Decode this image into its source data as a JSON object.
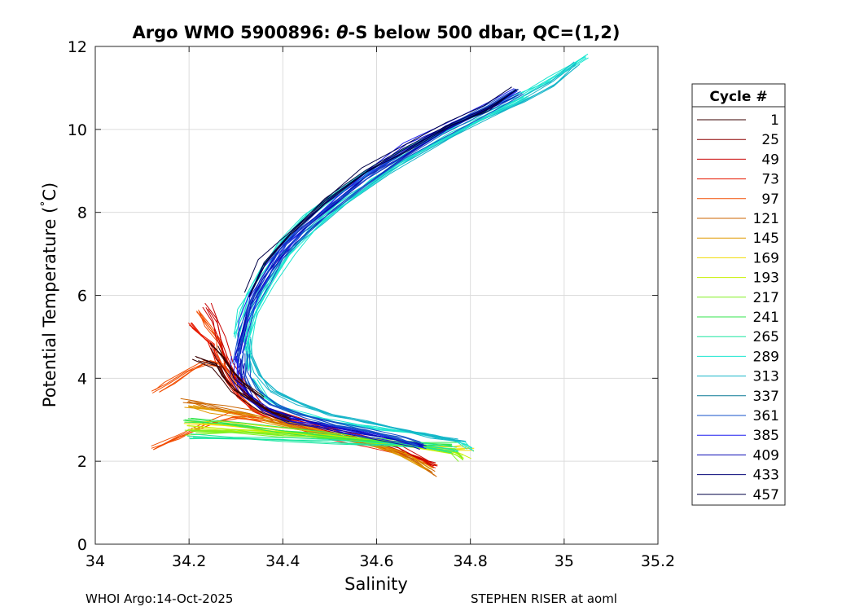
{
  "chart_data": {
    "type": "line",
    "title_prefix": "Argo WMO 5900896: ",
    "title_theta": "θ",
    "title_suffix": "-S below 500 dbar,  QC=(1,2)",
    "xlabel": "Salinity",
    "ylabel_main": "Potential Temperature (",
    "ylabel_unit": "C)",
    "xlim": [
      34,
      35.2
    ],
    "ylim": [
      0,
      12
    ],
    "xticks": [
      "34",
      "34.2",
      "34.4",
      "34.6",
      "34.8",
      "35",
      "35.2"
    ],
    "yticks": [
      "0",
      "2",
      "4",
      "6",
      "8",
      "10",
      "12"
    ],
    "grid": true,
    "legend": {
      "title": "Cycle #",
      "placement": "outside-right",
      "entries": [
        {
          "label": "1",
          "color": "#3a0000"
        },
        {
          "label": "25",
          "color": "#8c0000"
        },
        {
          "label": "49",
          "color": "#c80000"
        },
        {
          "label": "73",
          "color": "#e61a00"
        },
        {
          "label": "97",
          "color": "#f24d00"
        },
        {
          "label": "121",
          "color": "#cc6600"
        },
        {
          "label": "145",
          "color": "#e09900"
        },
        {
          "label": "169",
          "color": "#f0dc00"
        },
        {
          "label": "193",
          "color": "#c8f000"
        },
        {
          "label": "217",
          "color": "#80f020"
        },
        {
          "label": "241",
          "color": "#33e64d"
        },
        {
          "label": "265",
          "color": "#1ae6a0"
        },
        {
          "label": "289",
          "color": "#1ae6d0"
        },
        {
          "label": "313",
          "color": "#14b4c8"
        },
        {
          "label": "337",
          "color": "#0a7896"
        },
        {
          "label": "361",
          "color": "#1450c8"
        },
        {
          "label": "385",
          "color": "#1e1ef0"
        },
        {
          "label": "409",
          "color": "#0a0ab4"
        },
        {
          "label": "433",
          "color": "#050578"
        },
        {
          "label": "457",
          "color": "#000046"
        }
      ]
    },
    "series": [
      {
        "color": "#e61a00",
        "points": [
          [
            34.205,
            5.3
          ],
          [
            34.23,
            5.0
          ],
          [
            34.25,
            4.8
          ],
          [
            34.26,
            4.5
          ],
          [
            34.27,
            4.2
          ],
          [
            34.29,
            3.8
          ],
          [
            34.31,
            3.5
          ],
          [
            34.34,
            3.2
          ],
          [
            34.38,
            3.0
          ],
          [
            34.43,
            2.8
          ],
          [
            34.5,
            2.6
          ],
          [
            34.58,
            2.4
          ],
          [
            34.65,
            2.2
          ],
          [
            34.7,
            2.0
          ],
          [
            34.72,
            1.85
          ]
        ]
      },
      {
        "color": "#f24d00",
        "points": [
          [
            34.22,
            5.6
          ],
          [
            34.24,
            5.2
          ],
          [
            34.26,
            4.9
          ],
          [
            34.27,
            4.6
          ],
          [
            34.28,
            4.3
          ],
          [
            34.3,
            3.9
          ],
          [
            34.32,
            3.55
          ],
          [
            34.35,
            3.25
          ],
          [
            34.4,
            3.0
          ],
          [
            34.46,
            2.8
          ],
          [
            34.53,
            2.6
          ],
          [
            34.61,
            2.35
          ],
          [
            34.68,
            2.1
          ],
          [
            34.72,
            1.9
          ]
        ]
      },
      {
        "color": "#c80000",
        "points": [
          [
            34.24,
            5.75
          ],
          [
            34.26,
            5.4
          ],
          [
            34.27,
            5.0
          ],
          [
            34.28,
            4.6
          ],
          [
            34.29,
            4.3
          ],
          [
            34.31,
            3.95
          ],
          [
            34.33,
            3.6
          ],
          [
            34.36,
            3.3
          ],
          [
            34.42,
            3.05
          ],
          [
            34.48,
            2.85
          ],
          [
            34.56,
            2.6
          ],
          [
            34.64,
            2.35
          ],
          [
            34.7,
            2.05
          ],
          [
            34.725,
            1.9
          ]
        ]
      },
      {
        "color": "#cc6600",
        "points": [
          [
            34.19,
            3.5
          ],
          [
            34.22,
            3.4
          ],
          [
            34.27,
            3.3
          ],
          [
            34.32,
            3.2
          ],
          [
            34.38,
            3.0
          ],
          [
            34.45,
            2.8
          ],
          [
            34.52,
            2.6
          ],
          [
            34.6,
            2.4
          ],
          [
            34.67,
            2.1
          ],
          [
            34.72,
            1.7
          ]
        ]
      },
      {
        "color": "#e09900",
        "points": [
          [
            34.2,
            3.3
          ],
          [
            34.25,
            3.2
          ],
          [
            34.31,
            3.1
          ],
          [
            34.37,
            2.95
          ],
          [
            34.44,
            2.8
          ],
          [
            34.51,
            2.6
          ],
          [
            34.59,
            2.4
          ],
          [
            34.66,
            2.15
          ],
          [
            34.71,
            1.8
          ]
        ]
      },
      {
        "color": "#f24d00",
        "points": [
          [
            34.13,
            3.7
          ],
          [
            34.16,
            3.9
          ],
          [
            34.2,
            4.2
          ],
          [
            34.24,
            4.4
          ],
          [
            34.27,
            4.3
          ]
        ]
      },
      {
        "color": "#f24d00",
        "points": [
          [
            34.125,
            2.3
          ],
          [
            34.18,
            2.6
          ],
          [
            34.24,
            2.9
          ],
          [
            34.3,
            3.1
          ],
          [
            34.36,
            3.0
          ]
        ]
      },
      {
        "color": "#f0dc00",
        "points": [
          [
            34.2,
            2.95
          ],
          [
            34.28,
            2.9
          ],
          [
            34.36,
            2.8
          ],
          [
            34.44,
            2.7
          ],
          [
            34.52,
            2.6
          ],
          [
            34.6,
            2.5
          ],
          [
            34.68,
            2.4
          ],
          [
            34.76,
            2.35
          ],
          [
            34.8,
            2.35
          ]
        ]
      },
      {
        "color": "#c8f000",
        "points": [
          [
            34.2,
            2.8
          ],
          [
            34.3,
            2.75
          ],
          [
            34.4,
            2.7
          ],
          [
            34.5,
            2.6
          ],
          [
            34.6,
            2.5
          ],
          [
            34.7,
            2.35
          ],
          [
            34.77,
            2.2
          ],
          [
            34.79,
            2.1
          ]
        ]
      },
      {
        "color": "#80f020",
        "points": [
          [
            34.2,
            2.7
          ],
          [
            34.3,
            2.7
          ],
          [
            34.4,
            2.62
          ],
          [
            34.5,
            2.55
          ],
          [
            34.6,
            2.45
          ],
          [
            34.7,
            2.35
          ],
          [
            34.76,
            2.25
          ],
          [
            34.78,
            2.05
          ]
        ]
      },
      {
        "color": "#33e64d",
        "points": [
          [
            34.2,
            3.0
          ],
          [
            34.3,
            2.9
          ],
          [
            34.4,
            2.75
          ],
          [
            34.5,
            2.62
          ],
          [
            34.6,
            2.52
          ],
          [
            34.7,
            2.45
          ],
          [
            34.77,
            2.4
          ]
        ]
      },
      {
        "color": "#1ae6a0",
        "points": [
          [
            34.2,
            2.6
          ],
          [
            34.3,
            2.58
          ],
          [
            34.4,
            2.55
          ],
          [
            34.5,
            2.5
          ],
          [
            34.6,
            2.45
          ],
          [
            34.7,
            2.42
          ],
          [
            34.77,
            2.3
          ]
        ]
      },
      {
        "color": "#1ae6d0",
        "points": [
          [
            34.34,
            4.0
          ],
          [
            34.36,
            3.6
          ],
          [
            34.4,
            3.3
          ],
          [
            34.46,
            3.1
          ],
          [
            34.52,
            2.95
          ],
          [
            34.6,
            2.8
          ],
          [
            34.7,
            2.65
          ],
          [
            34.78,
            2.45
          ],
          [
            34.8,
            2.3
          ]
        ]
      },
      {
        "color": "#14b4c8",
        "points": [
          [
            34.32,
            5.0
          ],
          [
            34.33,
            4.6
          ],
          [
            34.35,
            4.1
          ],
          [
            34.38,
            3.7
          ],
          [
            34.43,
            3.4
          ],
          [
            34.5,
            3.15
          ],
          [
            34.58,
            2.95
          ],
          [
            34.66,
            2.75
          ],
          [
            34.72,
            2.6
          ],
          [
            34.78,
            2.5
          ]
        ]
      },
      {
        "color": "#1ae6d0",
        "points": [
          [
            34.3,
            5.0
          ],
          [
            34.31,
            5.6
          ],
          [
            34.33,
            6.1
          ],
          [
            34.36,
            6.7
          ],
          [
            34.4,
            7.3
          ],
          [
            34.45,
            7.9
          ],
          [
            34.52,
            8.5
          ],
          [
            34.6,
            9.1
          ],
          [
            34.7,
            9.7
          ],
          [
            34.8,
            10.3
          ],
          [
            34.9,
            10.8
          ],
          [
            34.97,
            11.2
          ],
          [
            35.05,
            11.75
          ]
        ]
      },
      {
        "color": "#14b4c8",
        "points": [
          [
            34.315,
            4.7
          ],
          [
            34.325,
            5.4
          ],
          [
            34.35,
            6.0
          ],
          [
            34.38,
            6.6
          ],
          [
            34.42,
            7.2
          ],
          [
            34.48,
            7.8
          ],
          [
            34.55,
            8.4
          ],
          [
            34.63,
            9.0
          ],
          [
            34.72,
            9.6
          ],
          [
            34.82,
            10.2
          ],
          [
            34.91,
            10.7
          ],
          [
            34.98,
            11.1
          ],
          [
            35.03,
            11.6
          ]
        ]
      },
      {
        "color": "#1ae6d0",
        "points": [
          [
            34.33,
            4.2
          ],
          [
            34.33,
            4.9
          ],
          [
            34.35,
            5.6
          ],
          [
            34.38,
            6.3
          ],
          [
            34.42,
            7.0
          ],
          [
            34.47,
            7.6
          ],
          [
            34.53,
            8.2
          ],
          [
            34.6,
            8.8
          ],
          [
            34.68,
            9.4
          ],
          [
            34.76,
            9.9
          ],
          [
            34.85,
            10.4
          ],
          [
            34.92,
            10.8
          ]
        ]
      },
      {
        "color": "#1e1ef0",
        "points": [
          [
            34.31,
            4.6
          ],
          [
            34.32,
            5.3
          ],
          [
            34.34,
            6.0
          ],
          [
            34.37,
            6.6
          ],
          [
            34.41,
            7.2
          ],
          [
            34.46,
            7.8
          ],
          [
            34.52,
            8.4
          ],
          [
            34.59,
            9.0
          ],
          [
            34.67,
            9.6
          ],
          [
            34.76,
            10.15
          ],
          [
            34.85,
            10.6
          ],
          [
            34.9,
            10.9
          ]
        ]
      },
      {
        "color": "#0a0ab4",
        "points": [
          [
            34.305,
            4.4
          ],
          [
            34.315,
            5.1
          ],
          [
            34.335,
            5.8
          ],
          [
            34.36,
            6.4
          ],
          [
            34.4,
            7.0
          ],
          [
            34.45,
            7.6
          ],
          [
            34.51,
            8.2
          ],
          [
            34.58,
            8.8
          ],
          [
            34.66,
            9.4
          ],
          [
            34.75,
            10.0
          ],
          [
            34.84,
            10.5
          ],
          [
            34.9,
            10.9
          ]
        ]
      },
      {
        "color": "#1450c8",
        "points": [
          [
            34.3,
            4.3
          ],
          [
            34.31,
            5.0
          ],
          [
            34.33,
            5.7
          ],
          [
            34.36,
            6.3
          ],
          [
            34.39,
            6.9
          ],
          [
            34.44,
            7.5
          ],
          [
            34.5,
            8.1
          ],
          [
            34.57,
            8.7
          ],
          [
            34.65,
            9.3
          ],
          [
            34.74,
            9.9
          ],
          [
            34.83,
            10.45
          ],
          [
            34.9,
            10.9
          ]
        ]
      },
      {
        "color": "#000046",
        "points": [
          [
            34.33,
            6.0
          ],
          [
            34.36,
            6.8
          ],
          [
            34.42,
            7.5
          ],
          [
            34.5,
            8.3
          ],
          [
            34.58,
            9.0
          ],
          [
            34.66,
            9.5
          ],
          [
            34.76,
            10.1
          ],
          [
            34.84,
            10.5
          ],
          [
            34.9,
            10.95
          ]
        ]
      },
      {
        "color": "#1e1ef0",
        "points": [
          [
            34.3,
            4.5
          ],
          [
            34.3,
            4.0
          ],
          [
            34.32,
            3.6
          ],
          [
            34.35,
            3.3
          ],
          [
            34.4,
            3.05
          ],
          [
            34.46,
            2.9
          ],
          [
            34.53,
            2.75
          ],
          [
            34.6,
            2.6
          ],
          [
            34.67,
            2.45
          ],
          [
            34.7,
            2.35
          ]
        ]
      },
      {
        "color": "#0a0ab4",
        "points": [
          [
            34.31,
            4.4
          ],
          [
            34.31,
            3.9
          ],
          [
            34.33,
            3.55
          ],
          [
            34.36,
            3.25
          ],
          [
            34.42,
            3.0
          ],
          [
            34.48,
            2.85
          ],
          [
            34.55,
            2.7
          ],
          [
            34.62,
            2.55
          ],
          [
            34.68,
            2.4
          ],
          [
            34.7,
            2.35
          ]
        ]
      },
      {
        "color": "#1450c8",
        "points": [
          [
            34.32,
            4.6
          ],
          [
            34.32,
            4.1
          ],
          [
            34.34,
            3.7
          ],
          [
            34.38,
            3.35
          ],
          [
            34.44,
            3.1
          ],
          [
            34.51,
            2.9
          ],
          [
            34.58,
            2.75
          ],
          [
            34.65,
            2.55
          ],
          [
            34.69,
            2.4
          ]
        ]
      },
      {
        "color": "#3a0000",
        "points": [
          [
            34.22,
            4.45
          ],
          [
            34.26,
            4.3
          ],
          [
            34.28,
            4.0
          ],
          [
            34.3,
            3.7
          ],
          [
            34.33,
            3.45
          ],
          [
            34.37,
            3.2
          ],
          [
            34.42,
            3.0
          ]
        ]
      },
      {
        "color": "#3a0000",
        "points": [
          [
            34.25,
            4.8
          ],
          [
            34.27,
            4.5
          ],
          [
            34.29,
            4.2
          ],
          [
            34.31,
            3.9
          ],
          [
            34.35,
            3.55
          ]
        ]
      }
    ]
  },
  "footer": {
    "left": "WHOI Argo:14-Oct-2025",
    "right": "STEPHEN RISER at aoml"
  }
}
